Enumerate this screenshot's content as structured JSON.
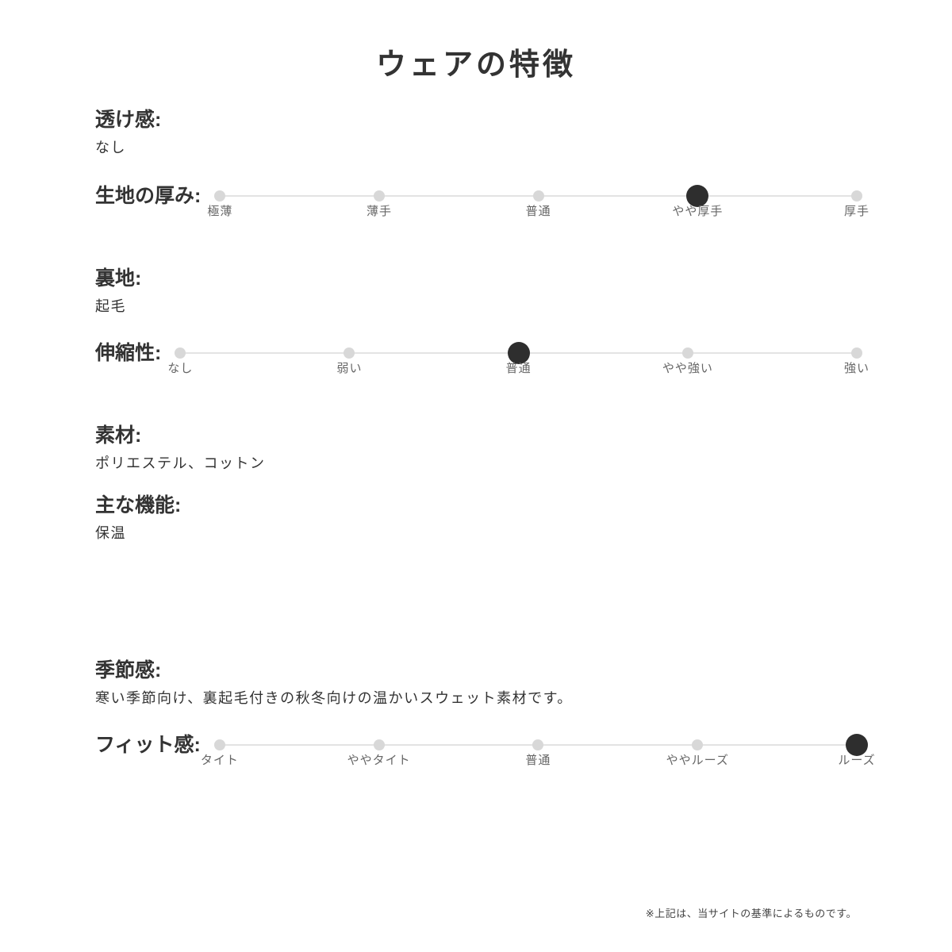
{
  "page": {
    "title": "ウェアの特徴",
    "footnote": "※上記は、当サイトの基準によるものです。"
  },
  "sections": {
    "sheerness": {
      "label": "透け感:",
      "value": "なし"
    },
    "thickness": {
      "label": "生地の厚み:",
      "options": [
        "極薄",
        "薄手",
        "普通",
        "やや厚手",
        "厚手"
      ],
      "selected_index": 3,
      "selected_value": "やや厚手"
    },
    "lining": {
      "label": "裏地:",
      "value": "起毛"
    },
    "stretch": {
      "label": "伸縮性:",
      "options": [
        "なし",
        "弱い",
        "普通",
        "やや強い",
        "強い"
      ],
      "selected_index": 2,
      "selected_value": "普通"
    },
    "material": {
      "label": "素材:",
      "value": "ポリエステル、コットン"
    },
    "main_function": {
      "label": "主な機能:",
      "value": "保温"
    },
    "season": {
      "label": "季節感:",
      "value": "寒い季節向け、裏起毛付きの秋冬向けの温かいスウェット素材です。"
    },
    "fit": {
      "label": "フィット感:",
      "options": [
        "タイト",
        "ややタイト",
        "普通",
        "ややルーズ",
        "ルーズ"
      ],
      "selected_index": 4,
      "selected_value": "ルーズ"
    }
  },
  "colors": {
    "heading": "#333333",
    "value": "#333333",
    "scale_label": "#666666",
    "track": "#e3e3e3",
    "dot": "#d8d8d8",
    "dot_selected": "#2e2e2e",
    "footnote": "#444444"
  }
}
